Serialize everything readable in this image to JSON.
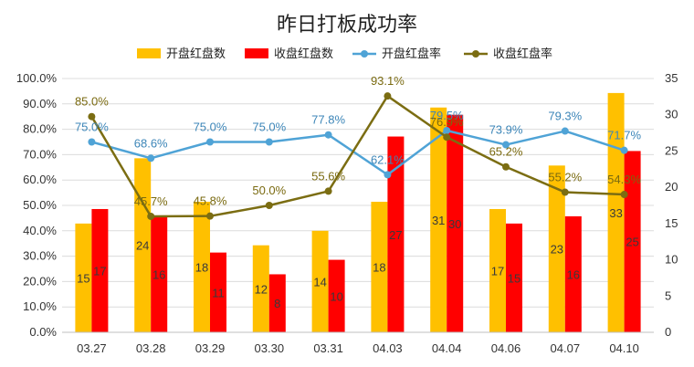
{
  "chart_data": {
    "type": "bar",
    "title": "昨日打板成功率",
    "categories": [
      "03.27",
      "03.28",
      "03.29",
      "03.30",
      "03.31",
      "04.03",
      "04.04",
      "04.06",
      "04.07",
      "04.10"
    ],
    "series": [
      {
        "name": "开盘红盘数",
        "kind": "bar",
        "axis": "right",
        "color": "#FFC000",
        "values": [
          15,
          24,
          18,
          12,
          14,
          18,
          31,
          17,
          23,
          33
        ]
      },
      {
        "name": "收盘红盘数",
        "kind": "bar",
        "axis": "right",
        "color": "#FF0000",
        "values": [
          17,
          16,
          11,
          8,
          10,
          27,
          30,
          15,
          16,
          25
        ]
      },
      {
        "name": "开盘红盘率",
        "kind": "line",
        "axis": "left",
        "color": "#4FA3D6",
        "values": [
          75.0,
          68.6,
          75.0,
          75.0,
          77.8,
          62.1,
          79.5,
          73.9,
          79.3,
          71.7
        ],
        "labels": [
          "75.0%",
          "68.6%",
          "75.0%",
          "75.0%",
          "77.8%",
          "62.1%",
          "79.5%",
          "73.9%",
          "79.3%",
          "71.7%"
        ]
      },
      {
        "name": "收盘红盘率",
        "kind": "line",
        "axis": "left",
        "color": "#7B6D12",
        "values": [
          85.0,
          45.7,
          45.8,
          50.0,
          55.6,
          93.1,
          76.9,
          65.2,
          55.2,
          54.3
        ],
        "labels": [
          "85.0%",
          "45.7%",
          "45.8%",
          "50.0%",
          "55.6%",
          "93.1%",
          "76.9%",
          "65.2%",
          "55.2%",
          "54.3%"
        ]
      }
    ],
    "y_left": {
      "min": 0,
      "max": 100,
      "step": 10,
      "ticks": [
        "0.0%",
        "10.0%",
        "20.0%",
        "30.0%",
        "40.0%",
        "50.0%",
        "60.0%",
        "70.0%",
        "80.0%",
        "90.0%",
        "100.0%"
      ]
    },
    "y_right": {
      "min": 0,
      "max": 35,
      "step": 5,
      "ticks": [
        "0",
        "5",
        "10",
        "15",
        "20",
        "25",
        "30",
        "35"
      ]
    },
    "grid": true,
    "legend": "top"
  }
}
